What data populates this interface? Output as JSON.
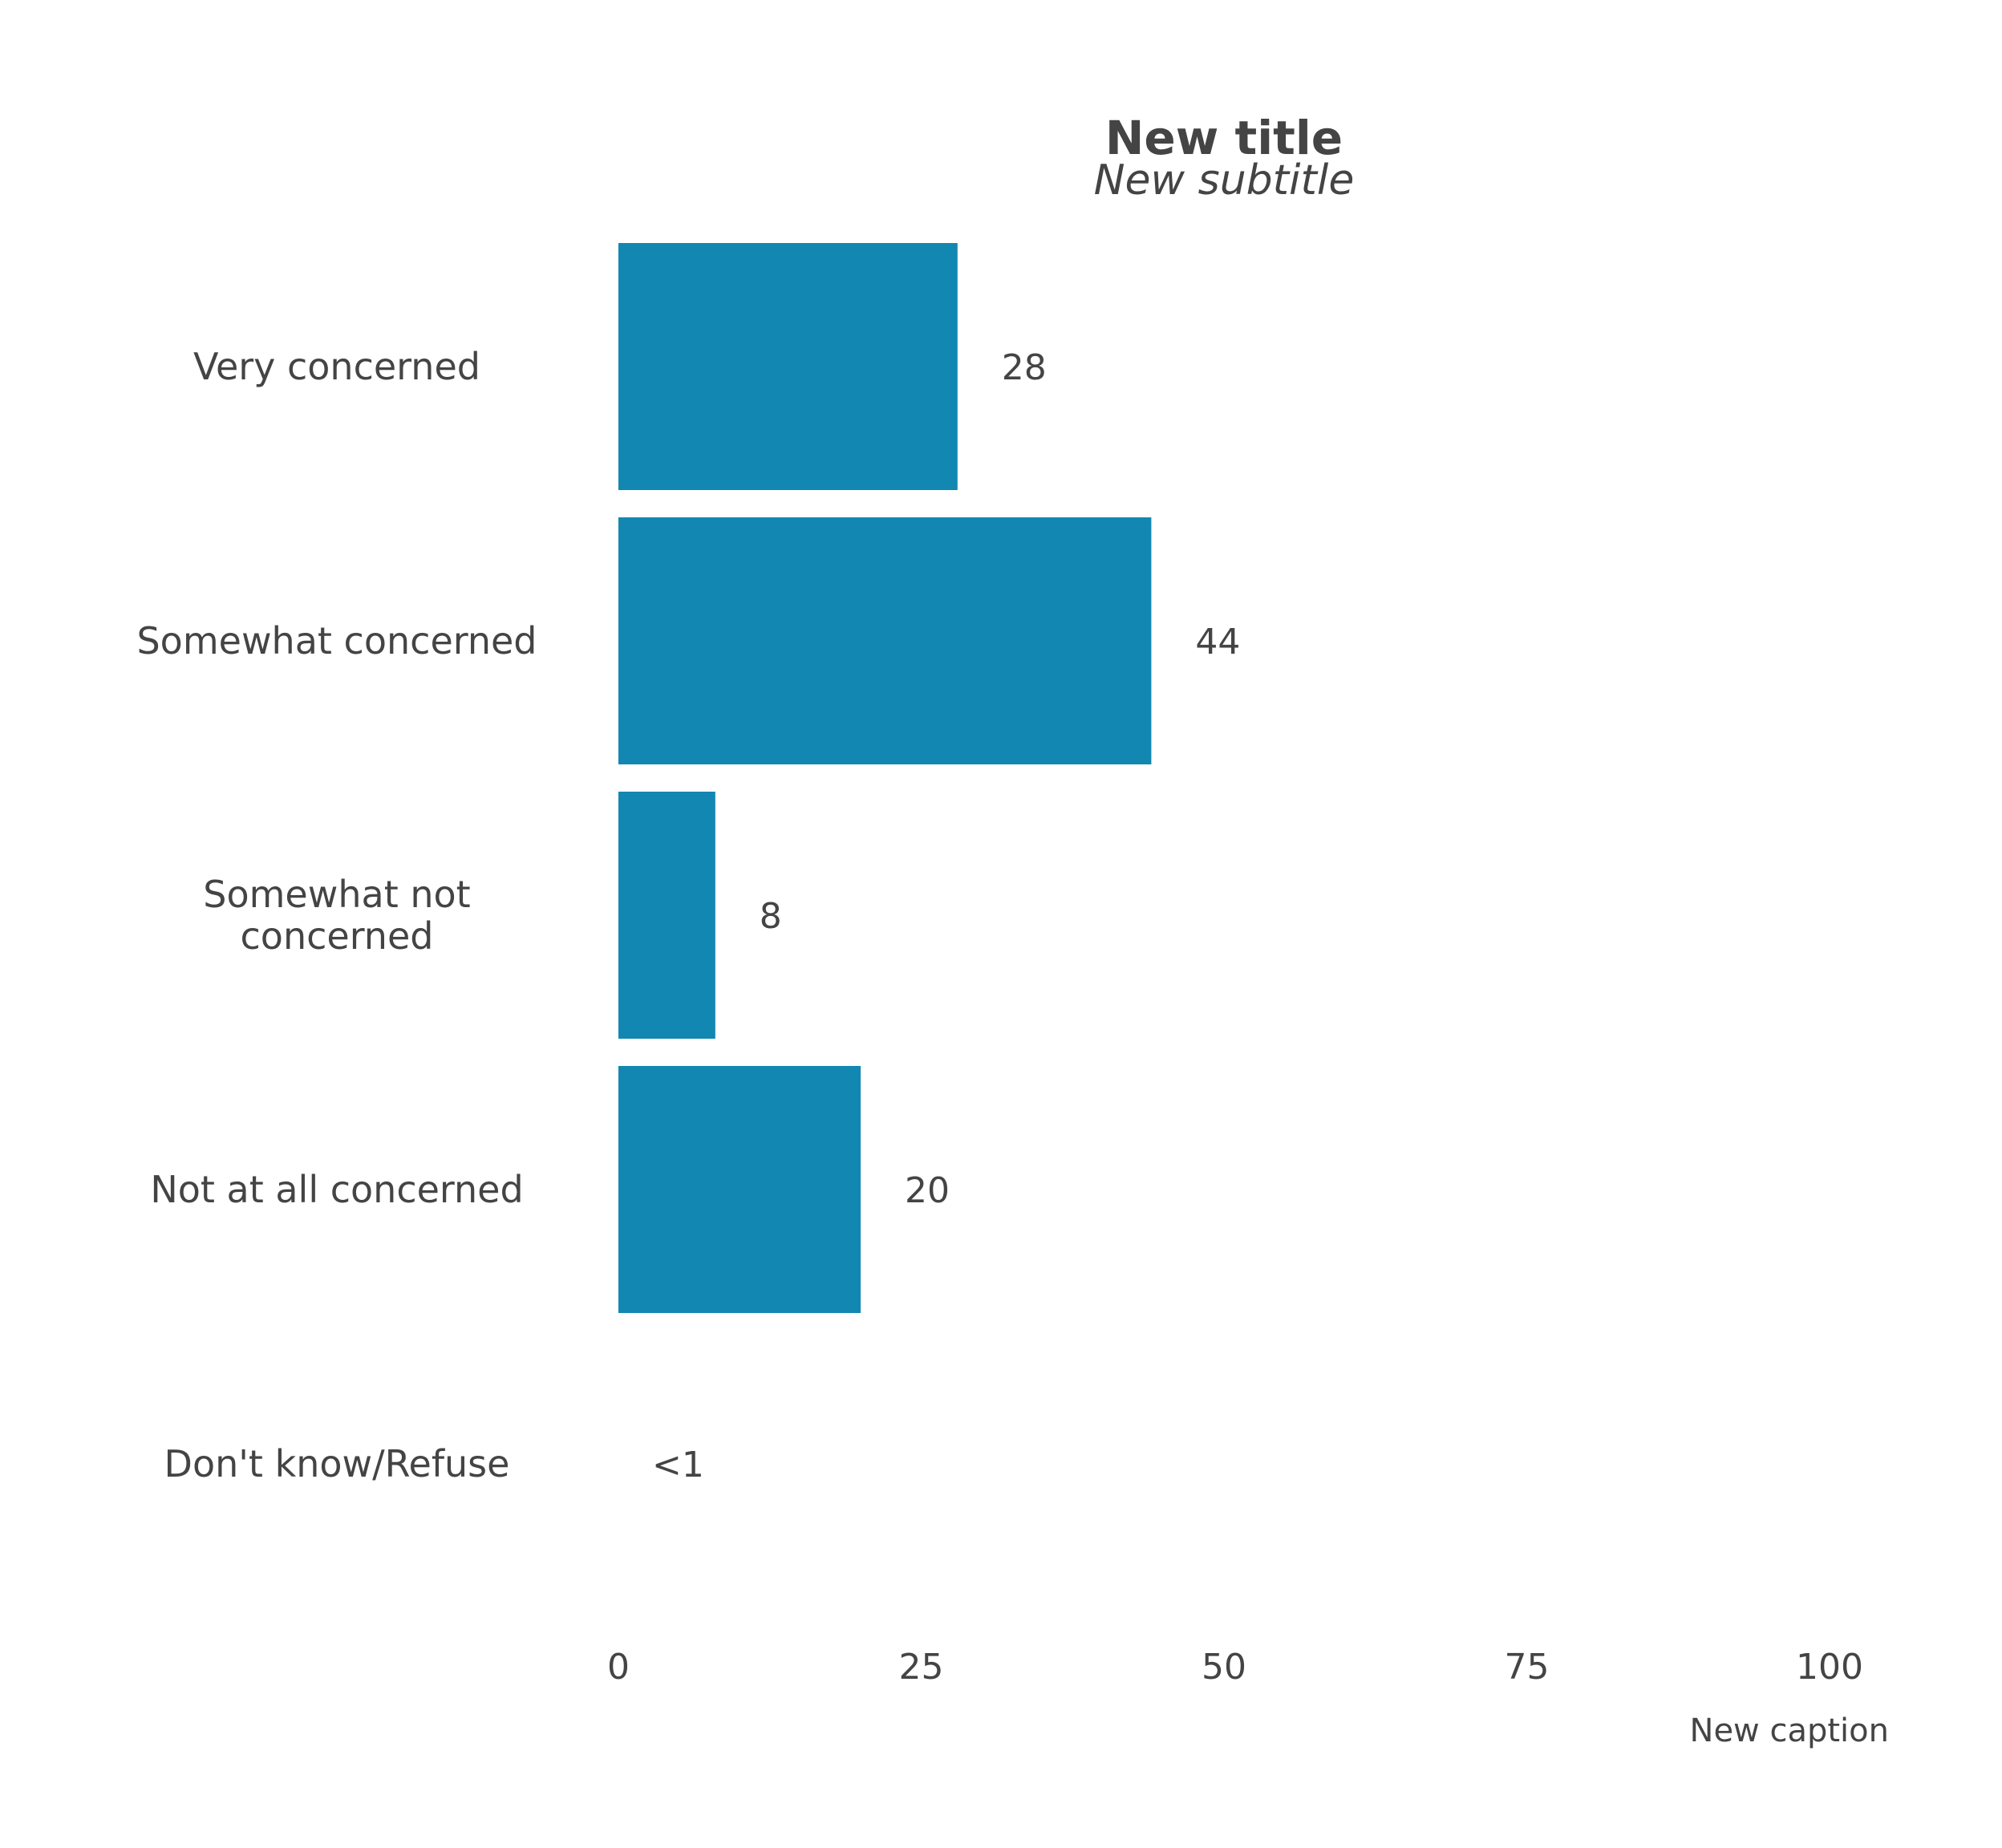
{
  "chart_data": {
    "type": "bar",
    "orientation": "horizontal",
    "title": "New title",
    "subtitle": "New subtitle",
    "caption": "New caption",
    "categories": [
      [
        "Very concerned"
      ],
      [
        "Somewhat concerned"
      ],
      [
        "Somewhat not",
        "concerned"
      ],
      [
        "Not at all concerned"
      ],
      [
        "Don't know/Refuse"
      ]
    ],
    "values": [
      28,
      44,
      8,
      20,
      0.4
    ],
    "value_labels": [
      "28",
      "44",
      "8",
      "20",
      "<1"
    ],
    "xlim": [
      0,
      100
    ],
    "xticks": [
      0,
      25,
      50,
      75,
      100
    ],
    "xtick_labels": [
      "0",
      "25",
      "50",
      "75",
      "100"
    ],
    "grid": false,
    "legend": "none",
    "bar_color": "#1287b1"
  }
}
